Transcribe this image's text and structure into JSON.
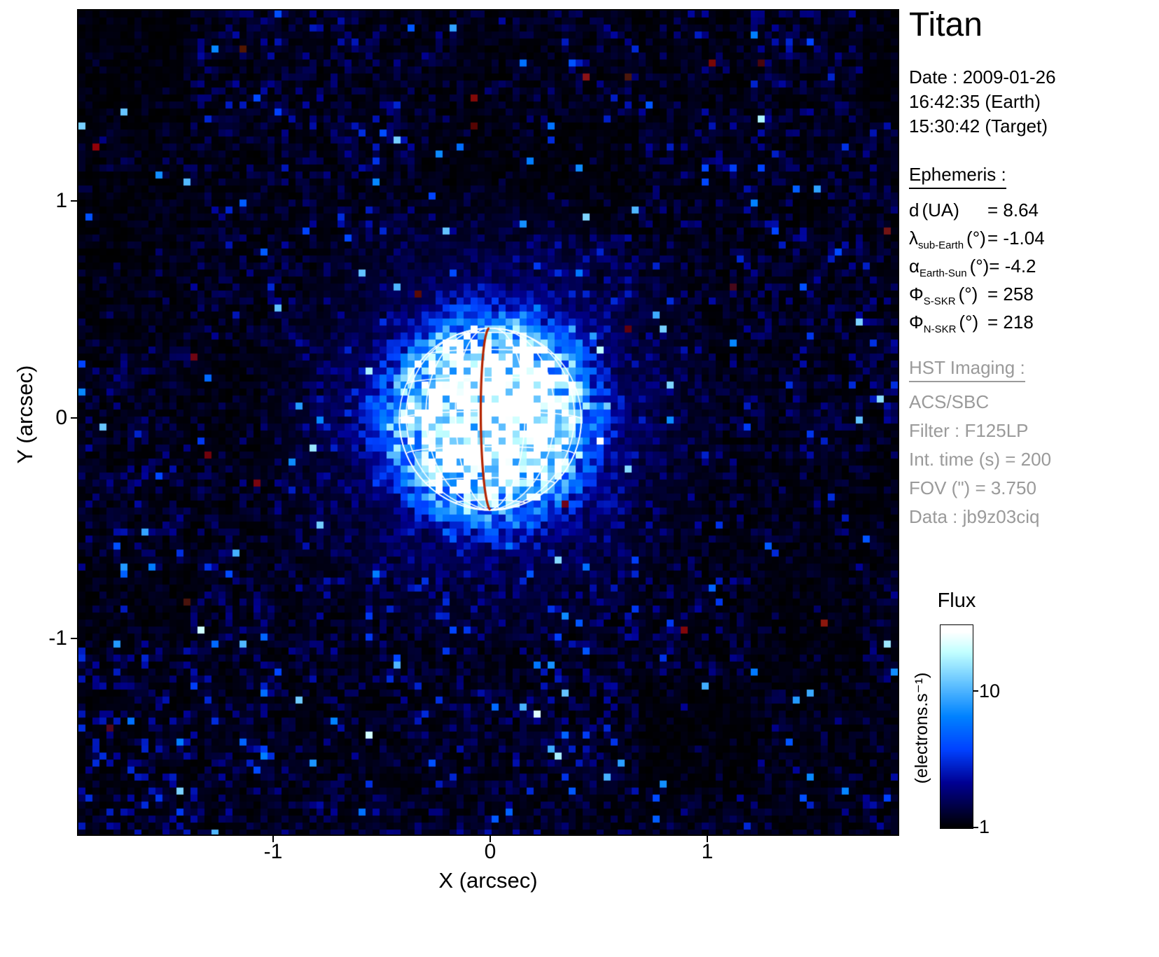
{
  "title": "Titan",
  "observation": {
    "lines": [
      "Date : 2009-01-26",
      "16:42:35 (Earth)",
      "15:30:42 (Target)"
    ]
  },
  "ephemeris": {
    "heading": "Ephemeris :",
    "rows": [
      {
        "symbol": "d",
        "sub": "",
        "unit": "(UA)",
        "value": "= 8.64"
      },
      {
        "symbol": "λ",
        "sub": "sub-Earth",
        "unit": "(°)",
        "value": "= -1.04"
      },
      {
        "symbol": "α",
        "sub": "Earth-Sun",
        "unit": "(°)",
        "value": "= -4.2"
      },
      {
        "symbol": "Φ",
        "sub": "S-SKR",
        "unit": "(°)",
        "value": "= 258"
      },
      {
        "symbol": "Φ",
        "sub": "N-SKR",
        "unit": "(°)",
        "value": "= 218"
      }
    ]
  },
  "hst": {
    "heading": "HST Imaging :",
    "lines": [
      "ACS/SBC",
      "Filter : F125LP",
      "Int. time (s) = 200",
      "FOV (\") = 3.750",
      "Data : jb9z03ciq"
    ]
  },
  "chart_data": {
    "type": "heatmap",
    "description": "HST ACS/SBC far-UV image of Titan: log-scaled flux map (black-blue-white colormap) with white latitude/longitude wireframe globe overlay and the central meridian drawn in dark red",
    "xlabel": "X (arcsec)",
    "ylabel": "Y (arcsec)",
    "xlim": [
      -1.9,
      1.88
    ],
    "ylim": [
      -1.9,
      1.87
    ],
    "xticks": [
      -1,
      0,
      1
    ],
    "yticks": [
      1,
      0,
      -1
    ],
    "colorbar": {
      "title": "Flux",
      "unit": "(electrons.s⁻¹)",
      "scale": "log",
      "range": [
        1,
        30
      ],
      "ticks": [
        1,
        10
      ],
      "colormap": [
        "#000000",
        "#0000cc",
        "#44aaff",
        "#ffffff"
      ]
    },
    "target": {
      "name": "Titan",
      "center_arcsec": [
        0,
        0
      ],
      "radius_arcsec": 0.42,
      "grid_step_deg": 22.5,
      "sub_observer_lat_deg": -5,
      "central_meridian_offset_deg": -6,
      "meridian_color": "#b32400",
      "grid_color": "#ffffff"
    },
    "noise": {
      "seed": 987654321,
      "pixel_size_px": 10,
      "background_level": 0.05,
      "speckle_fraction": 0.013
    }
  }
}
